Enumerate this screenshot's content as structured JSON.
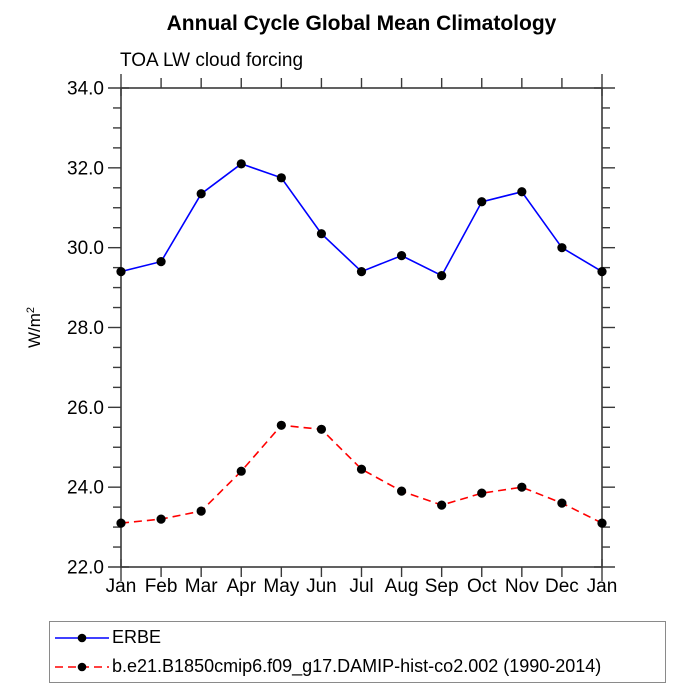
{
  "title": "Annual Cycle Global Mean Climatology",
  "subtitle": "TOA LW cloud forcing",
  "chart_data": {
    "type": "line",
    "categories": [
      "Jan",
      "Feb",
      "Mar",
      "Apr",
      "May",
      "Jun",
      "Jul",
      "Aug",
      "Sep",
      "Oct",
      "Nov",
      "Dec",
      "Jan"
    ],
    "xlabel": "",
    "ylabel_base": "W/m",
    "ylabel_sup": "2",
    "ylim": [
      22.0,
      34.0
    ],
    "ytick_values": [
      34,
      32,
      30,
      28,
      26,
      24,
      22
    ],
    "ytick_labels": [
      "34.0",
      "32.0",
      "30.0",
      "28.0",
      "26.0",
      "24.0",
      "22.0"
    ],
    "yminor_step": 0.5,
    "grid": false,
    "legend_position": "bottom-left",
    "axis_color": "#3a3a3a",
    "marker_color": "#000000",
    "series": [
      {
        "name": "ERBE",
        "color": "#0000ff",
        "line_style": "solid",
        "values": [
          29.4,
          29.65,
          31.35,
          32.1,
          31.75,
          30.35,
          29.4,
          29.8,
          29.3,
          31.15,
          31.4,
          30.0,
          29.4
        ]
      },
      {
        "name": "b.e21.B1850cmip6.f09_g17.DAMIP-hist-co2.002 (1990-2014)",
        "color": "#ff0000",
        "line_style": "dashed",
        "values": [
          23.1,
          23.2,
          23.4,
          24.4,
          25.55,
          25.45,
          24.45,
          23.9,
          23.55,
          23.85,
          24.0,
          23.6,
          23.1
        ]
      }
    ]
  }
}
